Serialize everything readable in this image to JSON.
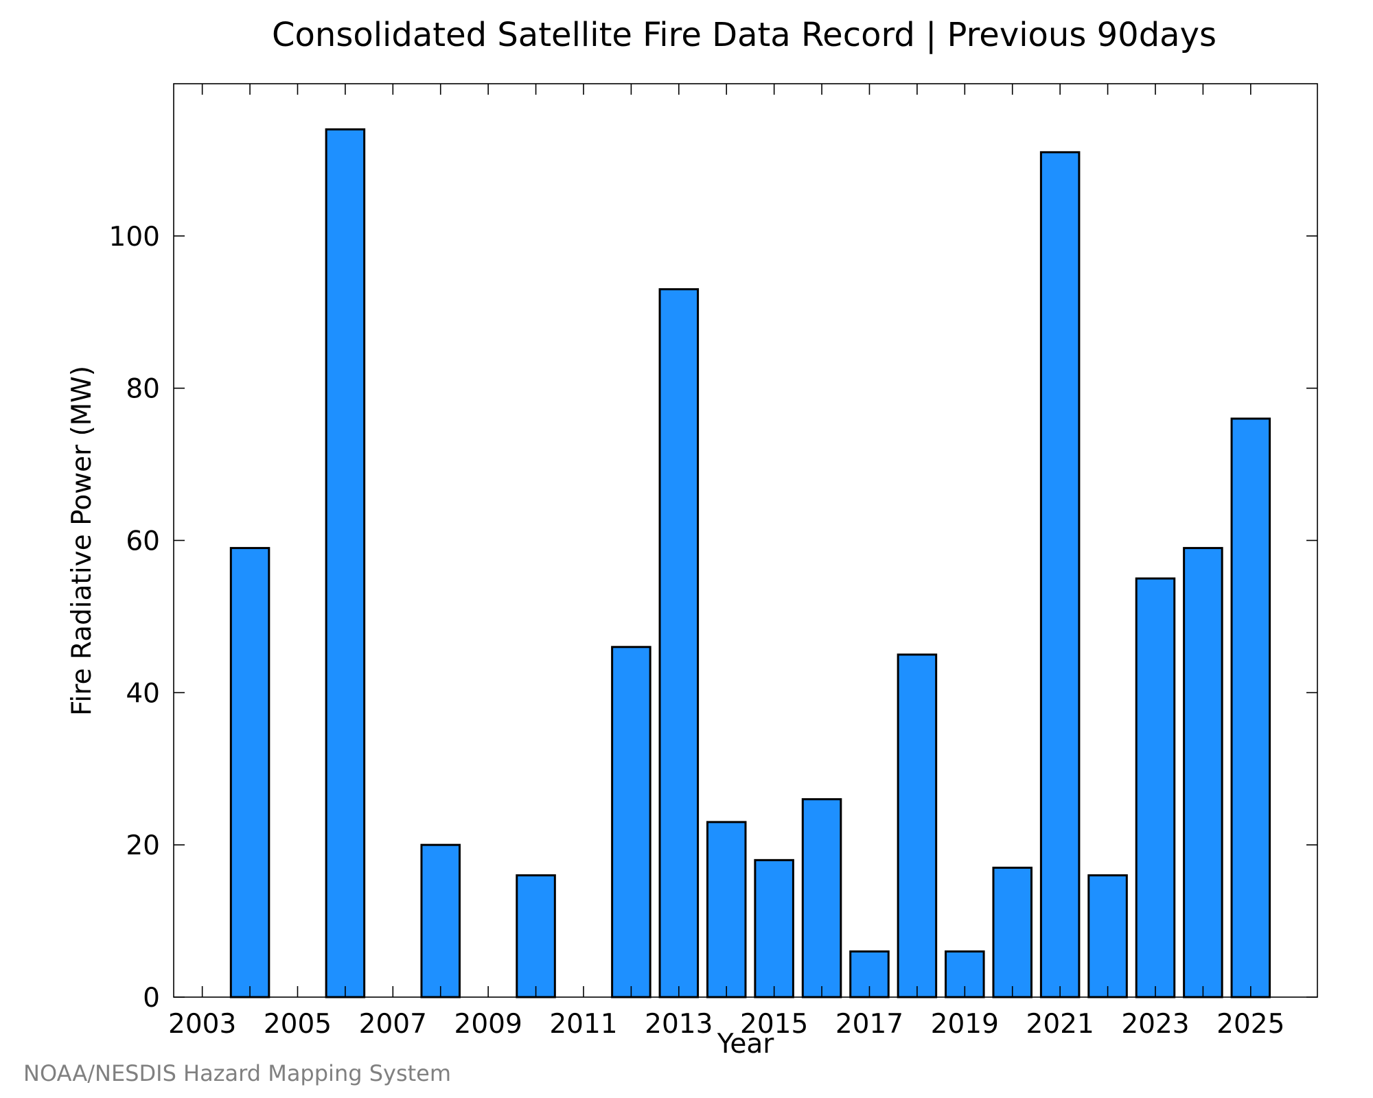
{
  "chart_data": {
    "type": "bar",
    "title": "Consolidated Satellite Fire Data Record | Previous 90days",
    "xlabel": "Year",
    "ylabel": "Fire Radiative Power (MW)",
    "credit": "NOAA/NESDIS Hazard Mapping System",
    "categories": [
      2003,
      2004,
      2005,
      2006,
      2007,
      2008,
      2009,
      2010,
      2011,
      2012,
      2013,
      2014,
      2015,
      2016,
      2017,
      2018,
      2019,
      2020,
      2021,
      2022,
      2023,
      2024,
      2025
    ],
    "values": [
      0,
      59,
      0,
      114,
      0,
      20,
      0,
      16,
      0,
      46,
      93,
      23,
      18,
      26,
      6,
      45,
      6,
      17,
      111,
      16,
      55,
      59,
      76
    ],
    "x_ticks": [
      "2003",
      "2005",
      "2007",
      "2009",
      "2011",
      "2013",
      "2015",
      "2017",
      "2019",
      "2021",
      "2023",
      "2025"
    ],
    "y_ticks": [
      "0",
      "20",
      "40",
      "60",
      "80",
      "100"
    ],
    "xlim": [
      2002.4,
      2026.4
    ],
    "ylim": [
      0,
      120
    ],
    "bar_color": "#1e90ff",
    "edge_color": "#000000",
    "grid": false,
    "legend": "none"
  }
}
